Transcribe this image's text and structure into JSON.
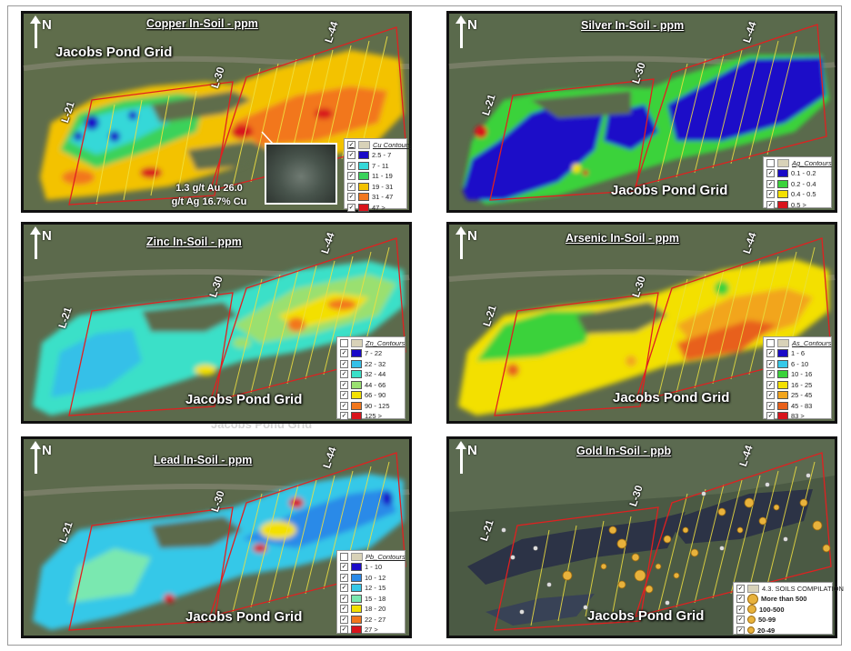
{
  "panels": [
    {
      "title": "Copper In-Soil - ppm",
      "grid_label": "Jacobs Pond Grid",
      "north": "N",
      "lines": [
        "L-21",
        "L-30",
        "L-44"
      ],
      "legend": {
        "title": "Cu Contours",
        "items": [
          {
            "label": "2.5 - 7",
            "color": "#1a0ac8"
          },
          {
            "label": "7 - 11",
            "color": "#35d8d8"
          },
          {
            "label": "11 - 19",
            "color": "#3ad25a"
          },
          {
            "label": "19 - 31",
            "color": "#f3c200"
          },
          {
            "label": "31 - 47",
            "color": "#f2771d"
          },
          {
            "label": "47 >",
            "color": "#d8141c"
          }
        ]
      },
      "caption": [
        "1.3 g/t Au 26.0",
        "g/t Ag 16.7% Cu"
      ]
    },
    {
      "title": "Silver In-Soil - ppm",
      "grid_label": "Jacobs Pond Grid",
      "north": "N",
      "lines": [
        "L-21",
        "L-30",
        "L-44"
      ],
      "legend": {
        "title": "Ag_Contours",
        "items": [
          {
            "label": "0.1 - 0.2",
            "color": "#1a0ac8"
          },
          {
            "label": "0.2 - 0.4",
            "color": "#3ad23a"
          },
          {
            "label": "0.4 - 0.5",
            "color": "#f3e000"
          },
          {
            "label": "0.5 >",
            "color": "#d8141c"
          }
        ]
      }
    },
    {
      "title": "Zinc In-Soil - ppm",
      "grid_label": "Jacobs Pond Grid",
      "north": "N",
      "lines": [
        "L-21",
        "L-30",
        "L-44"
      ],
      "legend": {
        "title": "Zn_Contours",
        "items": [
          {
            "label": "7 - 22",
            "color": "#1a0ac8"
          },
          {
            "label": "22 - 32",
            "color": "#35c0e8"
          },
          {
            "label": "32 - 44",
            "color": "#3ae0c8"
          },
          {
            "label": "44 - 66",
            "color": "#9ae070"
          },
          {
            "label": "66 - 90",
            "color": "#f3e000"
          },
          {
            "label": "90 - 125",
            "color": "#f2771d"
          },
          {
            "label": "125 >",
            "color": "#d8141c"
          }
        ]
      }
    },
    {
      "title": "Arsenic In-Soil - ppm",
      "grid_label": "Jacobs Pond Grid",
      "north": "N",
      "lines": [
        "L-21",
        "L-30",
        "L-44"
      ],
      "legend": {
        "title": "As_Contours",
        "items": [
          {
            "label": "1 - 6",
            "color": "#1a0ac8"
          },
          {
            "label": "6 - 10",
            "color": "#35c8e8"
          },
          {
            "label": "10 - 16",
            "color": "#3ad23a"
          },
          {
            "label": "16 - 25",
            "color": "#f3e000"
          },
          {
            "label": "25 - 45",
            "color": "#f2a51d"
          },
          {
            "label": "45 - 83",
            "color": "#e8601a"
          },
          {
            "label": "83 >",
            "color": "#d8141c"
          }
        ]
      }
    },
    {
      "title": "Lead In-Soil - ppm",
      "grid_label": "Jacobs Pond Grid",
      "north": "N",
      "lines": [
        "L-21",
        "L-30",
        "L-44"
      ],
      "legend": {
        "title": "Pb_Contours",
        "items": [
          {
            "label": "1 - 10",
            "color": "#1a0ac8"
          },
          {
            "label": "10 - 12",
            "color": "#2a8ae8"
          },
          {
            "label": "12 - 15",
            "color": "#35c8e8"
          },
          {
            "label": "15 - 18",
            "color": "#7ae8b0"
          },
          {
            "label": "18 - 20",
            "color": "#f3e000"
          },
          {
            "label": "22 - 27",
            "color": "#f2771d"
          },
          {
            "label": "27 >",
            "color": "#d8141c"
          }
        ]
      }
    },
    {
      "title": "Gold In-Soil - ppb",
      "grid_label": "Jacobs Pond Grid",
      "north": "N",
      "lines": [
        "L-21",
        "L-30",
        "L-44"
      ],
      "legend": {
        "title": "4.3. SOILS COMPILATION",
        "items": [
          {
            "label": "More than 500",
            "size": 10
          },
          {
            "label": "100-500",
            "size": 8
          },
          {
            "label": "50-99",
            "size": 7
          },
          {
            "label": "20-49",
            "size": 6
          }
        ]
      }
    }
  ],
  "overlay_text": "Jacobs Pond Grid"
}
